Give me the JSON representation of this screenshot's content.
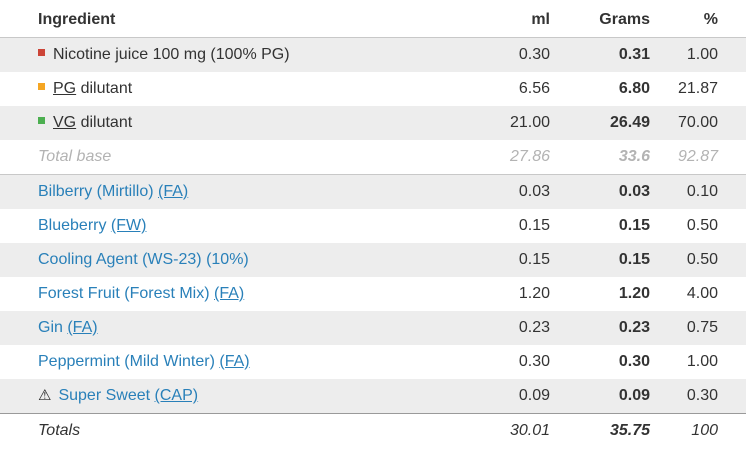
{
  "colors": {
    "link": "#2980b9",
    "bullet-red": "#cc4437",
    "bullet-orange": "#f5a623",
    "bullet-green": "#4caf50",
    "row-shade": "#ededed",
    "muted": "#b3b3b3"
  },
  "icons": {
    "warning": "⚠"
  },
  "header": {
    "ingredient": "Ingredient",
    "ml": "ml",
    "grams": "Grams",
    "percent": "%"
  },
  "rows": [
    {
      "kind": "base",
      "bullet": "red",
      "pre": "Nicotine juice 100 mg (100% PG)",
      "abbr": "",
      "post": "",
      "ml": "0.30",
      "grams": "0.31",
      "percent": "1.00"
    },
    {
      "kind": "base",
      "bullet": "orange",
      "pre": "",
      "abbr": "PG",
      "post": " dilutant",
      "ml": "6.56",
      "grams": "6.80",
      "percent": "21.87"
    },
    {
      "kind": "base",
      "bullet": "green",
      "pre": "",
      "abbr": "VG",
      "post": " dilutant",
      "ml": "21.00",
      "grams": "26.49",
      "percent": "70.00"
    },
    {
      "kind": "total-base",
      "pre": "Total base",
      "abbr": "",
      "post": "",
      "ml": "27.86",
      "grams": "33.6",
      "percent": "92.87"
    },
    {
      "kind": "flavor",
      "pre": "Bilberry (Mirtillo) ",
      "abbr": "(FA)",
      "post": "",
      "ml": "0.03",
      "grams": "0.03",
      "percent": "0.10"
    },
    {
      "kind": "flavor",
      "pre": "Blueberry ",
      "abbr": "(FW)",
      "post": "",
      "ml": "0.15",
      "grams": "0.15",
      "percent": "0.50"
    },
    {
      "kind": "flavor",
      "pre": "Cooling Agent (WS-23) (10%)",
      "abbr": "",
      "post": "",
      "ml": "0.15",
      "grams": "0.15",
      "percent": "0.50"
    },
    {
      "kind": "flavor",
      "pre": "Forest Fruit (Forest Mix) ",
      "abbr": "(FA)",
      "post": "",
      "ml": "1.20",
      "grams": "1.20",
      "percent": "4.00"
    },
    {
      "kind": "flavor",
      "pre": "Gin ",
      "abbr": "(FA)",
      "post": "",
      "ml": "0.23",
      "grams": "0.23",
      "percent": "0.75"
    },
    {
      "kind": "flavor",
      "pre": "Peppermint (Mild Winter) ",
      "abbr": "(FA)",
      "post": "",
      "ml": "0.30",
      "grams": "0.30",
      "percent": "1.00"
    },
    {
      "kind": "flavor",
      "warning": true,
      "pre": "Super Sweet ",
      "abbr": "(CAP)",
      "post": "",
      "ml": "0.09",
      "grams": "0.09",
      "percent": "0.30"
    },
    {
      "kind": "totals",
      "pre": "Totals",
      "abbr": "",
      "post": "",
      "ml": "30.01",
      "grams": "35.75",
      "percent": "100"
    }
  ]
}
